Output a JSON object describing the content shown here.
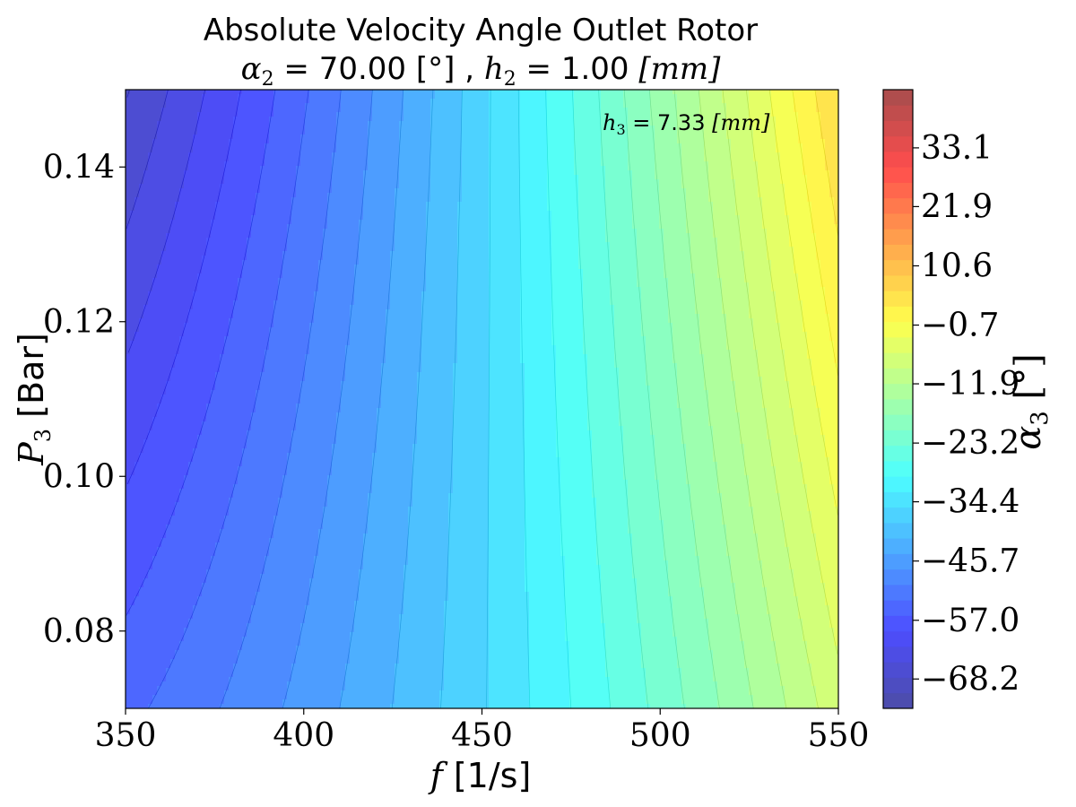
{
  "chart_data": {
    "type": "heatmap",
    "title_line1": "Absolute Velocity Angle Outlet Rotor",
    "title_line2": {
      "alpha_sym": "α",
      "alpha_sub": "2",
      "alpha_val": " = 70.00 [°] , ",
      "h_sym": "h",
      "h_sub": "2",
      "h_val": " = 1.00 ",
      "h_unit": "[mm]"
    },
    "annotation": {
      "sym": "h",
      "sub": "3",
      "val": " = 7.33 ",
      "unit": "[mm]"
    },
    "xlabel": {
      "sym": "f",
      "unit": " [1/s]"
    },
    "ylabel": {
      "sym": "P",
      "sub": "3",
      "unit": " [Bar]"
    },
    "colorbar_label": {
      "sym": "α",
      "sub": "3",
      "unit": " [°]"
    },
    "xlim": [
      350,
      550
    ],
    "ylim": [
      0.07,
      0.15
    ],
    "xticks": [
      "350",
      "400",
      "450",
      "500",
      "550"
    ],
    "xtick_values": [
      350,
      400,
      450,
      500,
      550
    ],
    "yticks": [
      "0.08",
      "0.10",
      "0.12",
      "0.14"
    ],
    "ytick_values": [
      0.08,
      0.1,
      0.12,
      0.14
    ],
    "colorbar_range": [
      -73.8,
      44.2
    ],
    "colorbar_levels": 40,
    "colorbar_ticks": [
      "−68.2",
      "−57.0",
      "−45.7",
      "−34.4",
      "−23.2",
      "−11.9",
      "−0.7",
      "10.6",
      "21.9",
      "33.1"
    ],
    "colorbar_tick_values": [
      -68.2,
      -57.0,
      -45.7,
      -34.4,
      -23.2,
      -11.9,
      -0.7,
      10.6,
      21.9,
      33.1
    ],
    "colormap": "jet",
    "alpha": 0.7,
    "field_samples": [
      {
        "f": 350,
        "P3": 0.15,
        "alpha3": -68.2
      },
      {
        "f": 350,
        "P3": 0.07,
        "alpha3": -54.0
      },
      {
        "f": 450,
        "P3": 0.07,
        "alpha3": -28.0
      },
      {
        "f": 450,
        "P3": 0.15,
        "alpha3": -43.0
      },
      {
        "f": 550,
        "P3": 0.07,
        "alpha3": -5.0
      },
      {
        "f": 550,
        "P3": 0.15,
        "alpha3": 8.0
      }
    ]
  }
}
